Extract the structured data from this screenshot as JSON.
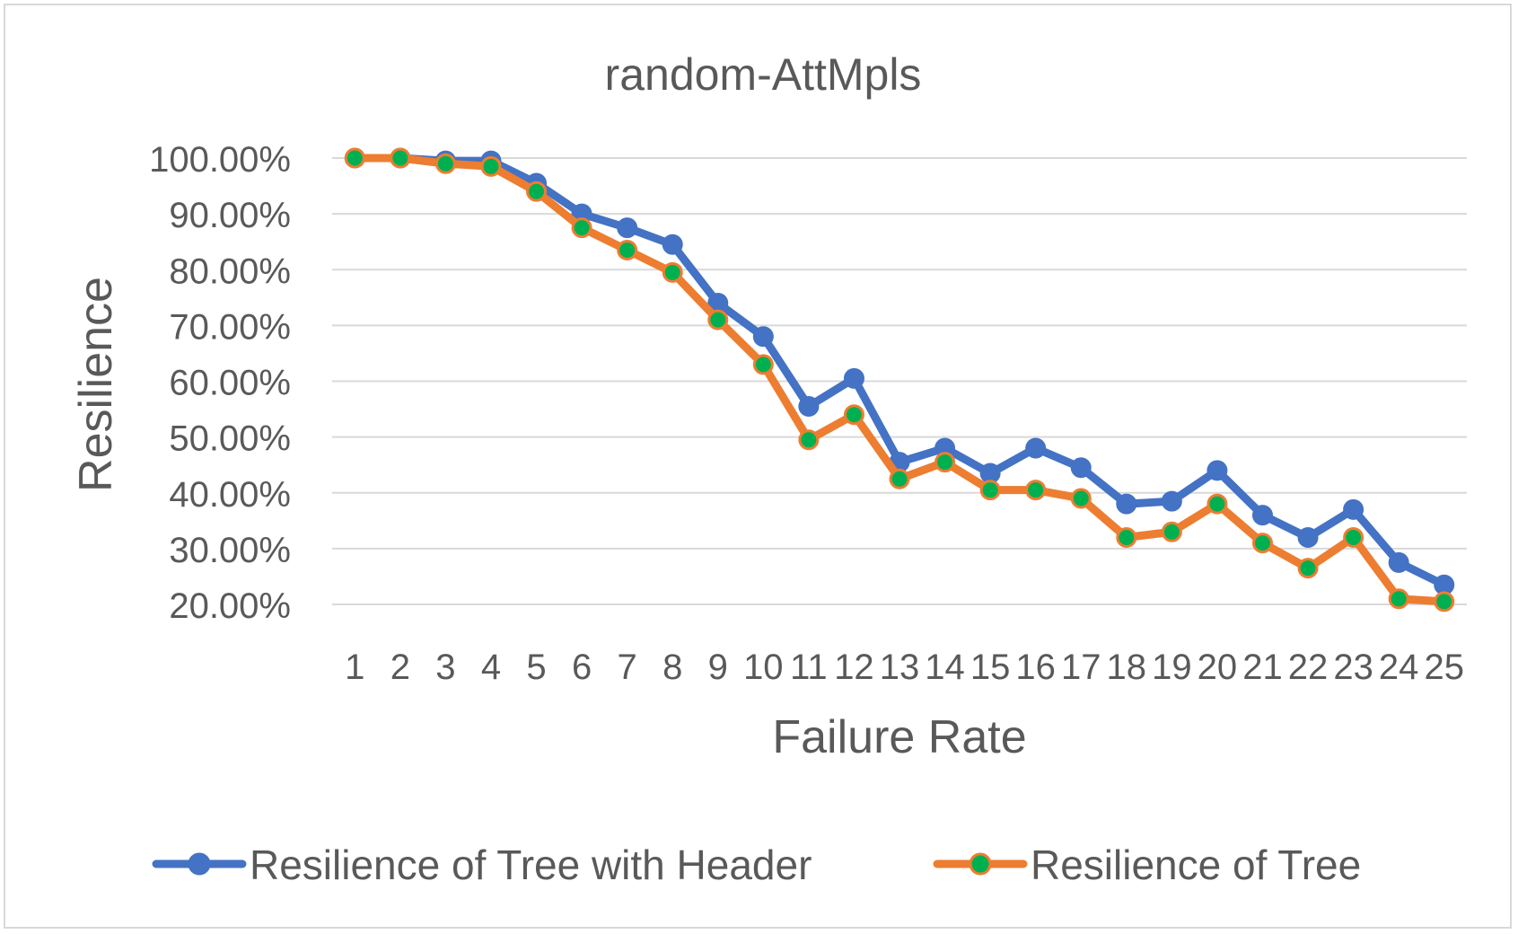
{
  "chart_data": {
    "type": "line",
    "title": "random-AttMpls",
    "xlabel": "Failure Rate",
    "ylabel": "Resilience",
    "categories": [
      "1",
      "2",
      "3",
      "4",
      "5",
      "6",
      "7",
      "8",
      "9",
      "10",
      "11",
      "12",
      "13",
      "14",
      "15",
      "16",
      "17",
      "18",
      "19",
      "20",
      "21",
      "22",
      "23",
      "24",
      "25"
    ],
    "yticks": [
      "20.00%",
      "30.00%",
      "40.00%",
      "50.00%",
      "60.00%",
      "70.00%",
      "80.00%",
      "90.00%",
      "100.00%"
    ],
    "ylim": [
      20,
      100
    ],
    "grid": true,
    "legend_position": "bottom",
    "series": [
      {
        "name": "Resilience of Tree with Header",
        "color": "#4472c4",
        "marker_color": "#4472c4",
        "values": [
          100,
          100,
          99.5,
          99.5,
          95.5,
          90,
          87.5,
          84.5,
          74,
          68,
          55.5,
          60.5,
          45.5,
          48,
          43.5,
          48,
          44.5,
          38,
          38.5,
          44,
          36,
          32,
          37,
          27.5,
          23.5
        ]
      },
      {
        "name": "Resilience of Tree",
        "color": "#ed7d31",
        "marker_color": "#00b050",
        "values": [
          100,
          100,
          99,
          98.5,
          94,
          87.5,
          83.5,
          79.5,
          71,
          63,
          49.5,
          54,
          42.5,
          45.5,
          40.5,
          40.5,
          39,
          32,
          33,
          38,
          31,
          26.5,
          32,
          21,
          20.5
        ]
      }
    ]
  }
}
